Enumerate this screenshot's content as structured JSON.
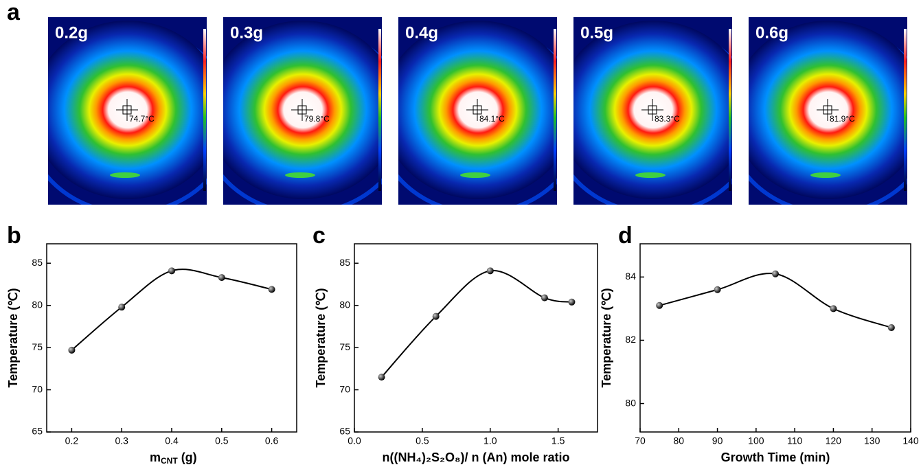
{
  "panel_labels": [
    "a",
    "b",
    "c",
    "d"
  ],
  "thermal_images": [
    {
      "label": "0.2g",
      "reading": "74.7°C"
    },
    {
      "label": "0.3g",
      "reading": "79.8°C"
    },
    {
      "label": "0.4g",
      "reading": "84.1°C"
    },
    {
      "label": "0.5g",
      "reading": "83.3°C"
    },
    {
      "label": "0.6g",
      "reading": "81.9°C"
    }
  ],
  "chart_data": [
    {
      "type": "line",
      "x_label": "m",
      "x_label_sub": "CNT",
      "x_label_unit": "(g)",
      "y_label": "Temperature (℃)",
      "x": [
        0.2,
        0.3,
        0.4,
        0.5,
        0.6
      ],
      "series": [
        {
          "color": "#000000",
          "values": [
            74.7,
            79.8,
            84.1,
            83.3,
            81.9
          ]
        }
      ],
      "xlim": [
        0.15,
        0.65
      ],
      "xticks": [
        0.2,
        0.3,
        0.4,
        0.5,
        0.6
      ],
      "ylim": [
        65,
        87.3
      ],
      "yticks": [
        65,
        70,
        75,
        80,
        85
      ]
    },
    {
      "type": "line",
      "x_label": "n((NH₄)₂S₂O₈)/ n (An) mole ratio",
      "y_label": "Temperature (℃)",
      "x": [
        0.2,
        0.6,
        1.0,
        1.4,
        1.6
      ],
      "series": [
        {
          "color": "#000000",
          "values": [
            71.5,
            78.7,
            84.1,
            80.9,
            80.4
          ]
        }
      ],
      "xlim": [
        0,
        1.79
      ],
      "xticks": [
        {
          "value": 0,
          "label": "0.0"
        },
        0.5,
        {
          "value": 1,
          "label": "1.0"
        },
        1.5
      ],
      "ylim": [
        65,
        87.3
      ],
      "yticks": [
        65,
        70,
        75,
        80,
        85
      ]
    },
    {
      "type": "line",
      "x_label": "Growth Time (min)",
      "y_label": "Temperature (℃)",
      "x": [
        75,
        90,
        105,
        120,
        135
      ],
      "series": [
        {
          "color": "#000000",
          "values": [
            83.1,
            83.6,
            84.1,
            83.0,
            82.4
          ]
        }
      ],
      "xlim": [
        70,
        140
      ],
      "xticks": [
        70,
        80,
        90,
        100,
        110,
        120,
        130,
        140
      ],
      "ylim": [
        79.1,
        85.05
      ],
      "yticks": [
        80,
        82,
        84
      ]
    }
  ]
}
